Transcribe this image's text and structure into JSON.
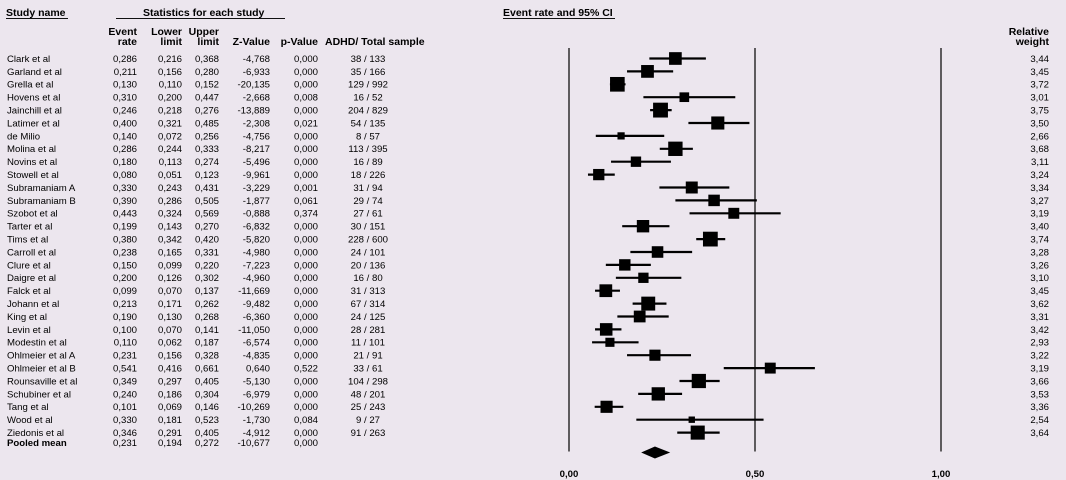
{
  "header": {
    "study_name": "Study name",
    "stats_title": "Statistics for each study",
    "plot_title": "Event rate and 95% CI",
    "col_event_1": "Event",
    "col_event_2": "rate",
    "col_lower_1": "Lower",
    "col_lower_2": "limit",
    "col_upper_1": "Upper",
    "col_upper_2": "limit",
    "col_z": "Z-Value",
    "col_p": "p-Value",
    "col_sample": "ADHD/ Total sample",
    "col_weight_1": "Relative",
    "col_weight_2": "weight"
  },
  "chart_data": {
    "type": "forest",
    "xlim": [
      0,
      1
    ],
    "x_ticks": [
      {
        "value": 0,
        "label": "0,00"
      },
      {
        "value": 0.5,
        "label": "0,50"
      },
      {
        "value": 1,
        "label": "1,00"
      }
    ],
    "studies": [
      {
        "name": "Clark et al",
        "rate": 0.286,
        "rate_label": "0,286",
        "lower": 0.216,
        "lower_label": "0,216",
        "upper": 0.368,
        "upper_label": "0,368",
        "z": "-4,768",
        "p": "0,000",
        "sample": "38 / 133",
        "weight": 3.44,
        "weight_label": "3,44"
      },
      {
        "name": "Garland et al",
        "rate": 0.211,
        "rate_label": "0,211",
        "lower": 0.156,
        "lower_label": "0,156",
        "upper": 0.28,
        "upper_label": "0,280",
        "z": "-6,933",
        "p": "0,000",
        "sample": "35 / 166",
        "weight": 3.45,
        "weight_label": "3,45"
      },
      {
        "name": "Grella et al",
        "rate": 0.13,
        "rate_label": "0,130",
        "lower": 0.11,
        "lower_label": "0,110",
        "upper": 0.152,
        "upper_label": "0,152",
        "z": "-20,135",
        "p": "0,000",
        "sample": "129 / 992",
        "weight": 3.72,
        "weight_label": "3,72"
      },
      {
        "name": "Hovens et al",
        "rate": 0.31,
        "rate_label": "0,310",
        "lower": 0.2,
        "lower_label": "0,200",
        "upper": 0.447,
        "upper_label": "0,447",
        "z": "-2,668",
        "p": "0,008",
        "sample": "16 / 52",
        "weight": 3.01,
        "weight_label": "3,01"
      },
      {
        "name": "Jainchill et al",
        "rate": 0.246,
        "rate_label": "0,246",
        "lower": 0.218,
        "lower_label": "0,218",
        "upper": 0.276,
        "upper_label": "0,276",
        "z": "-13,889",
        "p": "0,000",
        "sample": "204 / 829",
        "weight": 3.75,
        "weight_label": "3,75"
      },
      {
        "name": "Latimer et al",
        "rate": 0.4,
        "rate_label": "0,400",
        "lower": 0.321,
        "lower_label": "0,321",
        "upper": 0.485,
        "upper_label": "0,485",
        "z": "-2,308",
        "p": "0,021",
        "sample": "54 / 135",
        "weight": 3.5,
        "weight_label": "3,50"
      },
      {
        "name": "de Milio",
        "rate": 0.14,
        "rate_label": "0,140",
        "lower": 0.072,
        "lower_label": "0,072",
        "upper": 0.256,
        "upper_label": "0,256",
        "z": "-4,756",
        "p": "0,000",
        "sample": "8 / 57",
        "weight": 2.66,
        "weight_label": "2,66"
      },
      {
        "name": "Molina et al",
        "rate": 0.286,
        "rate_label": "0,286",
        "lower": 0.244,
        "lower_label": "0,244",
        "upper": 0.333,
        "upper_label": "0,333",
        "z": "-8,217",
        "p": "0,000",
        "sample": "113 / 395",
        "weight": 3.68,
        "weight_label": "3,68"
      },
      {
        "name": "Novins et al",
        "rate": 0.18,
        "rate_label": "0,180",
        "lower": 0.113,
        "lower_label": "0,113",
        "upper": 0.274,
        "upper_label": "0,274",
        "z": "-5,496",
        "p": "0,000",
        "sample": "16 / 89",
        "weight": 3.11,
        "weight_label": "3,11"
      },
      {
        "name": "Stowell et al",
        "rate": 0.08,
        "rate_label": "0,080",
        "lower": 0.051,
        "lower_label": "0,051",
        "upper": 0.123,
        "upper_label": "0,123",
        "z": "-9,961",
        "p": "0,000",
        "sample": "18 / 226",
        "weight": 3.24,
        "weight_label": "3,24"
      },
      {
        "name": "Subramaniam A",
        "rate": 0.33,
        "rate_label": "0,330",
        "lower": 0.243,
        "lower_label": "0,243",
        "upper": 0.431,
        "upper_label": "0,431",
        "z": "-3,229",
        "p": "0,001",
        "sample": "31 / 94",
        "weight": 3.34,
        "weight_label": "3,34"
      },
      {
        "name": "Subramaniam B",
        "rate": 0.39,
        "rate_label": "0,390",
        "lower": 0.286,
        "lower_label": "0,286",
        "upper": 0.505,
        "upper_label": "0,505",
        "z": "-1,877",
        "p": "0,061",
        "sample": "29 / 74",
        "weight": 3.27,
        "weight_label": "3,27"
      },
      {
        "name": "Szobot et al",
        "rate": 0.443,
        "rate_label": "0,443",
        "lower": 0.324,
        "lower_label": "0,324",
        "upper": 0.569,
        "upper_label": "0,569",
        "z": "-0,888",
        "p": "0,374",
        "sample": "27 / 61",
        "weight": 3.19,
        "weight_label": "3,19"
      },
      {
        "name": "Tarter et al",
        "rate": 0.199,
        "rate_label": "0,199",
        "lower": 0.143,
        "lower_label": "0,143",
        "upper": 0.27,
        "upper_label": "0,270",
        "z": "-6,832",
        "p": "0,000",
        "sample": "30 / 151",
        "weight": 3.4,
        "weight_label": "3,40"
      },
      {
        "name": "Tims et al",
        "rate": 0.38,
        "rate_label": "0,380",
        "lower": 0.342,
        "lower_label": "0,342",
        "upper": 0.42,
        "upper_label": "0,420",
        "z": "-5,820",
        "p": "0,000",
        "sample": "228 / 600",
        "weight": 3.74,
        "weight_label": "3,74"
      },
      {
        "name": "Carroll et al",
        "rate": 0.238,
        "rate_label": "0,238",
        "lower": 0.165,
        "lower_label": "0,165",
        "upper": 0.331,
        "upper_label": "0,331",
        "z": "-4,980",
        "p": "0,000",
        "sample": "24 / 101",
        "weight": 3.28,
        "weight_label": "3,28"
      },
      {
        "name": "Clure et al",
        "rate": 0.15,
        "rate_label": "0,150",
        "lower": 0.099,
        "lower_label": "0,099",
        "upper": 0.22,
        "upper_label": "0,220",
        "z": "-7,223",
        "p": "0,000",
        "sample": "20 / 136",
        "weight": 3.26,
        "weight_label": "3,26"
      },
      {
        "name": "Daigre et al",
        "rate": 0.2,
        "rate_label": "0,200",
        "lower": 0.126,
        "lower_label": "0,126",
        "upper": 0.302,
        "upper_label": "0,302",
        "z": "-4,960",
        "p": "0,000",
        "sample": "16 / 80",
        "weight": 3.1,
        "weight_label": "3,10"
      },
      {
        "name": "Falck et al",
        "rate": 0.099,
        "rate_label": "0,099",
        "lower": 0.07,
        "lower_label": "0,070",
        "upper": 0.137,
        "upper_label": "0,137",
        "z": "-11,669",
        "p": "0,000",
        "sample": "31 / 313",
        "weight": 3.45,
        "weight_label": "3,45"
      },
      {
        "name": "Johann et al",
        "rate": 0.213,
        "rate_label": "0,213",
        "lower": 0.171,
        "lower_label": "0,171",
        "upper": 0.262,
        "upper_label": "0,262",
        "z": "-9,482",
        "p": "0,000",
        "sample": "67 / 314",
        "weight": 3.62,
        "weight_label": "3,62"
      },
      {
        "name": "King et al",
        "rate": 0.19,
        "rate_label": "0,190",
        "lower": 0.13,
        "lower_label": "0,130",
        "upper": 0.268,
        "upper_label": "0,268",
        "z": "-6,360",
        "p": "0,000",
        "sample": "24 / 125",
        "weight": 3.31,
        "weight_label": "3,31"
      },
      {
        "name": "Levin et al",
        "rate": 0.1,
        "rate_label": "0,100",
        "lower": 0.07,
        "lower_label": "0,070",
        "upper": 0.141,
        "upper_label": "0,141",
        "z": "-11,050",
        "p": "0,000",
        "sample": "28 / 281",
        "weight": 3.42,
        "weight_label": "3,42"
      },
      {
        "name": "Modestin et al",
        "rate": 0.11,
        "rate_label": "0,110",
        "lower": 0.062,
        "lower_label": "0,062",
        "upper": 0.187,
        "upper_label": "0,187",
        "z": "-6,574",
        "p": "0,000",
        "sample": "11 / 101",
        "weight": 2.93,
        "weight_label": "2,93"
      },
      {
        "name": "Ohlmeier et al A",
        "rate": 0.231,
        "rate_label": "0,231",
        "lower": 0.156,
        "lower_label": "0,156",
        "upper": 0.328,
        "upper_label": "0,328",
        "z": "-4,835",
        "p": "0,000",
        "sample": "21 / 91",
        "weight": 3.22,
        "weight_label": "3,22"
      },
      {
        "name": "Ohlmeier et al B",
        "rate": 0.541,
        "rate_label": "0,541",
        "lower": 0.416,
        "lower_label": "0,416",
        "upper": 0.661,
        "upper_label": "0,661",
        "z": "0,640",
        "p": "0,522",
        "sample": "33 / 61",
        "weight": 3.19,
        "weight_label": "3,19"
      },
      {
        "name": "Rounsaville et al",
        "rate": 0.349,
        "rate_label": "0,349",
        "lower": 0.297,
        "lower_label": "0,297",
        "upper": 0.405,
        "upper_label": "0,405",
        "z": "-5,130",
        "p": "0,000",
        "sample": "104 / 298",
        "weight": 3.66,
        "weight_label": "3,66"
      },
      {
        "name": "Schubiner et al",
        "rate": 0.24,
        "rate_label": "0,240",
        "lower": 0.186,
        "lower_label": "0,186",
        "upper": 0.304,
        "upper_label": "0,304",
        "z": "-6,979",
        "p": "0,000",
        "sample": "48 / 201",
        "weight": 3.53,
        "weight_label": "3,53"
      },
      {
        "name": "Tang et al",
        "rate": 0.101,
        "rate_label": "0,101",
        "lower": 0.069,
        "lower_label": "0,069",
        "upper": 0.146,
        "upper_label": "0,146",
        "z": "-10,269",
        "p": "0,000",
        "sample": "25 / 243",
        "weight": 3.36,
        "weight_label": "3,36"
      },
      {
        "name": "Wood et al",
        "rate": 0.33,
        "rate_label": "0,330",
        "lower": 0.181,
        "lower_label": "0,181",
        "upper": 0.523,
        "upper_label": "0,523",
        "z": "-1,730",
        "p": "0,084",
        "sample": "9 / 27",
        "weight": 2.54,
        "weight_label": "2,54"
      },
      {
        "name": "Ziedonis et al",
        "rate": 0.346,
        "rate_label": "0,346",
        "lower": 0.291,
        "lower_label": "0,291",
        "upper": 0.405,
        "upper_label": "0,405",
        "z": "-4,912",
        "p": "0,000",
        "sample": "91 / 263",
        "weight": 3.64,
        "weight_label": "3,64"
      }
    ],
    "pooled": {
      "name": "Pooled mean",
      "rate": 0.231,
      "rate_label": "0,231",
      "lower": 0.194,
      "lower_label": "0,194",
      "upper": 0.272,
      "upper_label": "0,272",
      "z": "-10,677",
      "p": "0,000"
    }
  }
}
